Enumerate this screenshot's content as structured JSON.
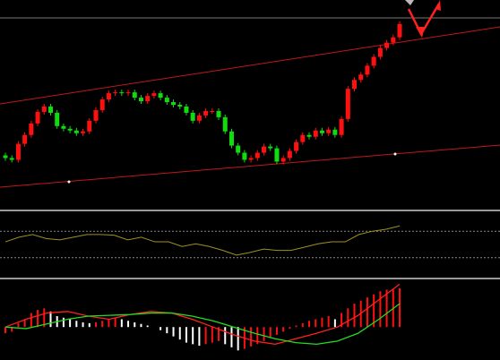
{
  "chart_data": {
    "type": "candlestick",
    "bull_color": "#ff1010",
    "bear_color": "#10dd10",
    "ylim": [
      0,
      233
    ],
    "open": [
      60,
      57,
      55,
      73,
      83,
      96,
      109,
      115,
      108,
      93,
      90,
      88,
      85,
      87,
      99,
      111,
      123,
      130,
      131,
      130,
      131,
      125,
      121,
      127,
      130,
      125,
      120,
      117,
      115,
      108,
      99,
      105,
      110,
      110,
      103,
      87,
      71,
      63,
      55,
      57,
      63,
      70,
      68,
      53,
      57,
      65,
      75,
      83,
      81,
      88,
      85,
      89,
      83,
      101,
      135,
      145,
      151,
      161,
      171,
      181,
      187,
      193
    ],
    "high": [
      63,
      60,
      76,
      86,
      99,
      112,
      118,
      118,
      111,
      96,
      93,
      91,
      90,
      102,
      114,
      126,
      133,
      134,
      134,
      134,
      134,
      128,
      130,
      133,
      133,
      128,
      123,
      120,
      118,
      111,
      108,
      113,
      113,
      113,
      106,
      90,
      74,
      66,
      60,
      66,
      73,
      73,
      71,
      60,
      68,
      78,
      86,
      86,
      91,
      91,
      92,
      92,
      104,
      138,
      148,
      154,
      164,
      174,
      184,
      190,
      196,
      211
    ],
    "low": [
      54,
      52,
      52,
      70,
      80,
      93,
      106,
      105,
      90,
      87,
      85,
      82,
      82,
      84,
      96,
      108,
      120,
      127,
      127,
      127,
      122,
      118,
      118,
      124,
      122,
      117,
      114,
      112,
      105,
      96,
      96,
      102,
      107,
      100,
      84,
      68,
      60,
      52,
      52,
      54,
      60,
      65,
      50,
      50,
      54,
      62,
      72,
      78,
      78,
      82,
      82,
      80,
      80,
      98,
      132,
      142,
      148,
      158,
      168,
      178,
      184,
      190
    ],
    "close": [
      57,
      55,
      73,
      83,
      96,
      109,
      115,
      108,
      93,
      90,
      88,
      85,
      87,
      99,
      111,
      123,
      130,
      131,
      130,
      131,
      125,
      121,
      127,
      130,
      125,
      120,
      117,
      115,
      108,
      99,
      105,
      110,
      110,
      103,
      87,
      71,
      63,
      55,
      57,
      63,
      70,
      68,
      53,
      57,
      65,
      75,
      83,
      81,
      88,
      85,
      89,
      83,
      101,
      135,
      145,
      151,
      161,
      171,
      181,
      187,
      193,
      208
    ],
    "oscillator": {
      "color": "#a09020",
      "ylim": [
        0,
        100
      ],
      "levels": [
        70,
        30
      ],
      "values": [
        54,
        61,
        65,
        59,
        57,
        61,
        65,
        65,
        64,
        57,
        61,
        54,
        54,
        47,
        51,
        47,
        41,
        34,
        38,
        43,
        41,
        41,
        46,
        51,
        54,
        54,
        65,
        70,
        73,
        78
      ]
    },
    "histogram": {
      "ylim": [
        -40,
        60
      ],
      "rising_color": "#ff1010",
      "falling_color": "#ffffff",
      "values": [
        -8,
        -6,
        5,
        10,
        18,
        22,
        24,
        20,
        14,
        12,
        10,
        8,
        6,
        5,
        6,
        8,
        10,
        12,
        10,
        8,
        6,
        4,
        2,
        0,
        -4,
        -8,
        -12,
        -16,
        -20,
        -22,
        -24,
        -22,
        -20,
        -18,
        -22,
        -26,
        -30,
        -28,
        -25,
        -22,
        -18,
        -14,
        -10,
        -6,
        -2,
        2,
        5,
        8,
        10,
        12,
        14,
        10,
        18,
        24,
        30,
        34,
        38,
        42,
        46,
        48,
        48,
        50
      ],
      "series": [
        {
          "color": "#ff2020",
          "values": [
            0,
            10,
            18,
            20,
            14,
            10,
            16,
            20,
            18,
            10,
            0,
            -10,
            -18,
            -22,
            -15,
            -8,
            0,
            15,
            35,
            55
          ]
        },
        {
          "color": "#20dd20",
          "values": [
            0,
            -2,
            4,
            10,
            14,
            15,
            16,
            18,
            18,
            14,
            8,
            0,
            -8,
            -15,
            -20,
            -22,
            -18,
            -8,
            10,
            30
          ]
        }
      ]
    }
  }
}
